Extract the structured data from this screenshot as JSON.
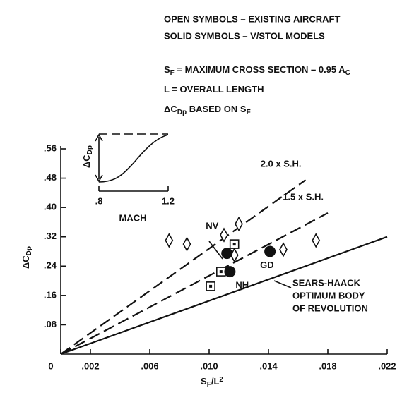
{
  "chart_data": {
    "type": "scatter",
    "notes": [
      "OPEN SYMBOLS – EXISTING AIRCRAFT",
      "SOLID SYMBOLS – V/STOL MODELS"
    ],
    "definitions": [
      [
        "S",
        "F",
        " = MAXIMUM CROSS SECTION – 0.95 A",
        "C"
      ],
      [
        "L = OVERALL LENGTH"
      ],
      [
        "ΔC",
        "Dp",
        " BASED ON S",
        "F"
      ]
    ],
    "x_label": [
      "S",
      "F",
      "/L",
      "2"
    ],
    "y_label": [
      "ΔC",
      "Dp"
    ],
    "xlim": [
      0,
      0.022
    ],
    "ylim": [
      0,
      0.56
    ],
    "xticks": [
      0,
      {
        "value": 0.002,
        "label": ".002"
      },
      {
        "value": 0.006,
        "label": ".006"
      },
      {
        "value": 0.01,
        "label": ".010"
      },
      {
        "value": 0.014,
        "label": ".014"
      },
      {
        "value": 0.018,
        "label": ".018"
      },
      {
        "value": 0.022,
        "label": ".022"
      }
    ],
    "yticks": [
      {
        "value": 0.08,
        "label": ".08"
      },
      {
        "value": 0.16,
        "label": ".16"
      },
      {
        "value": 0.24,
        "label": ".24"
      },
      {
        "value": 0.32,
        "label": ".32"
      },
      {
        "value": 0.4,
        "label": ".40"
      },
      {
        "value": 0.48,
        "label": ".48"
      },
      {
        "value": 0.56,
        "label": ".56"
      }
    ],
    "lines": [
      {
        "name": "2.0 x S.H.",
        "dash": true,
        "x": [
          0,
          0.0165
        ],
        "values": [
          0,
          0.475
        ]
      },
      {
        "name": "1.5 x S.H.",
        "dash": true,
        "x": [
          0,
          0.018
        ],
        "values": [
          0,
          0.385
        ]
      },
      {
        "name_lines": [
          "SEARS-HAACK",
          "OPTIMUM BODY",
          "OF REVOLUTION"
        ],
        "dash": false,
        "x": [
          0,
          0.022
        ],
        "values": [
          0,
          0.32
        ]
      }
    ],
    "series": [
      {
        "marker": "diamond",
        "color": "#111",
        "x": [
          0.0073,
          0.0085,
          0.011,
          0.012,
          0.0117,
          0.015,
          0.0172
        ],
        "values": [
          0.31,
          0.3,
          0.325,
          0.355,
          0.27,
          0.285,
          0.31
        ]
      },
      {
        "marker": "square",
        "color": "#111",
        "x": [
          0.0101,
          0.0108,
          0.0117
        ],
        "values": [
          0.185,
          0.225,
          0.3
        ]
      },
      {
        "marker": "circle",
        "color": "#111",
        "x": [
          0.0112,
          0.0114,
          0.0141
        ],
        "values": [
          0.275,
          0.225,
          0.28
        ],
        "labels": [
          "NV",
          "NH",
          "GD"
        ]
      }
    ],
    "inset": {
      "x_label": "MACH",
      "y_label": [
        "ΔC",
        "Dp"
      ],
      "xticks": [
        {
          "value": 0.8,
          "label": ".8"
        },
        1.2
      ],
      "xlim": [
        0.8,
        1.2
      ]
    }
  }
}
